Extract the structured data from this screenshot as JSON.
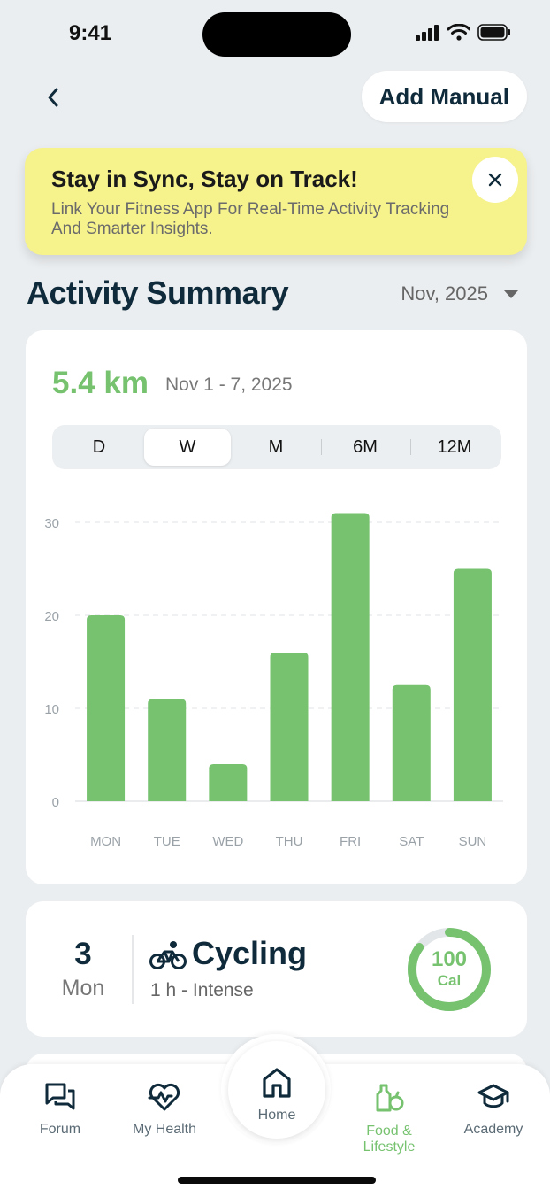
{
  "status": {
    "time": "9:41"
  },
  "header": {
    "add_manual_label": "Add Manual"
  },
  "banner": {
    "title": "Stay in Sync, Stay on Track!",
    "text": "Link Your Fitness App For Real-Time Activity Tracking And Smarter Insights."
  },
  "summary": {
    "title": "Activity Summary",
    "month": "Nov, 2025",
    "distance": "5.4 km",
    "date_range": "Nov 1 - 7, 2025",
    "periods": [
      "D",
      "W",
      "M",
      "6M",
      "12M"
    ],
    "active_period": "W"
  },
  "chart_data": {
    "type": "bar",
    "categories": [
      "MON",
      "TUE",
      "WED",
      "THU",
      "FRI",
      "SAT",
      "SUN"
    ],
    "values": [
      20,
      11,
      4,
      16,
      31,
      12.5,
      25
    ],
    "yticks": [
      0,
      10,
      20,
      30
    ],
    "ylim": [
      0,
      32
    ],
    "grid": true,
    "color": "#76c26f"
  },
  "activity": {
    "day_num": "3",
    "day_name": "Mon",
    "name": "Cycling",
    "detail": "1 h - Intense",
    "cal_value": "100",
    "cal_unit": "Cal",
    "ring_progress": 0.85
  },
  "tabs": {
    "forum": "Forum",
    "health": "My Health",
    "home": "Home",
    "food": "Food & Lifestyle",
    "academy": "Academy"
  },
  "colors": {
    "accent": "#76c26f",
    "banner": "#f6f28c",
    "text_dark": "#0f2a3a"
  }
}
